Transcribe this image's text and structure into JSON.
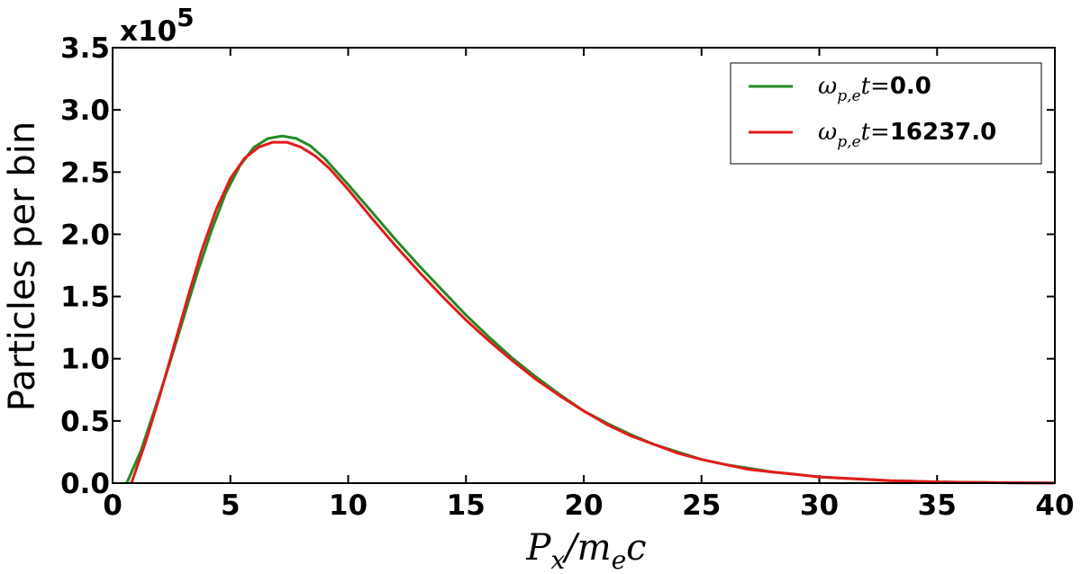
{
  "chart_data": {
    "type": "line",
    "title": "",
    "xlabel": {
      "base": "P",
      "sub1": "x",
      "mid": "/m",
      "sub2": "e",
      "end": "c"
    },
    "ylabel": "Particles per bin",
    "xlim": [
      0,
      40
    ],
    "ylim": [
      0,
      3.5
    ],
    "x_ticks": [
      "0",
      "5",
      "10",
      "15",
      "20",
      "25",
      "30",
      "35",
      "40"
    ],
    "y_ticks": [
      "0.0",
      "0.5",
      "1.0",
      "1.5",
      "2.0",
      "2.5",
      "3.0",
      "3.5"
    ],
    "y_multiplier": {
      "base": "x10",
      "exp": "5"
    },
    "grid": false,
    "legend_position": "top-right",
    "series": [
      {
        "name": {
          "omega": "ω",
          "sub": "p,e",
          "t": "t",
          "eq": "=",
          "value": "0.0"
        },
        "color": "#228b22",
        "x": [
          0.6,
          1.2,
          1.8,
          2.4,
          3.0,
          3.6,
          4.2,
          4.8,
          5.4,
          6.0,
          6.6,
          7.2,
          7.8,
          8.4,
          9.0,
          10.0,
          11.0,
          12.0,
          13.0,
          14.0,
          15.0,
          16.0,
          17.0,
          18.0,
          19.0,
          20.0,
          21.0,
          22.0,
          23.0,
          24.0,
          25.0,
          26.0,
          27.0,
          28.0,
          29.0,
          30.0,
          31.0,
          32.0,
          33.0,
          34.0,
          35.0,
          36.0,
          37.0,
          38.0,
          39.0,
          40.0
        ],
        "y": [
          0.0,
          0.26,
          0.6,
          0.95,
          1.32,
          1.69,
          2.03,
          2.33,
          2.55,
          2.7,
          2.77,
          2.79,
          2.77,
          2.71,
          2.61,
          2.4,
          2.18,
          1.96,
          1.75,
          1.55,
          1.35,
          1.17,
          1.0,
          0.85,
          0.71,
          0.58,
          0.48,
          0.39,
          0.31,
          0.25,
          0.19,
          0.15,
          0.12,
          0.09,
          0.07,
          0.05,
          0.04,
          0.03,
          0.02,
          0.015,
          0.01,
          0.007,
          0.005,
          0.003,
          0.002,
          0.001
        ]
      },
      {
        "name": {
          "omega": "ω",
          "sub": "p,e",
          "t": "t",
          "eq": "=",
          "value": "16237.0"
        },
        "color": "#e31b1b",
        "x": [
          0.8,
          1.4,
          2.0,
          2.6,
          3.2,
          3.8,
          4.4,
          5.0,
          5.6,
          6.2,
          6.8,
          7.4,
          8.0,
          8.6,
          9.2,
          10.0,
          11.0,
          12.0,
          13.0,
          14.0,
          15.0,
          16.0,
          17.0,
          18.0,
          19.0,
          20.0,
          21.0,
          22.0,
          23.0,
          24.0,
          25.0,
          26.0,
          27.0,
          28.0,
          29.0,
          30.0,
          31.0,
          32.0,
          33.0,
          34.0,
          35.0,
          36.0,
          37.0,
          38.0,
          39.0,
          40.0
        ],
        "y": [
          0.0,
          0.33,
          0.7,
          1.1,
          1.5,
          1.88,
          2.2,
          2.45,
          2.61,
          2.7,
          2.74,
          2.74,
          2.7,
          2.63,
          2.53,
          2.36,
          2.13,
          1.91,
          1.7,
          1.5,
          1.31,
          1.14,
          0.98,
          0.83,
          0.7,
          0.58,
          0.47,
          0.38,
          0.31,
          0.24,
          0.19,
          0.15,
          0.11,
          0.09,
          0.07,
          0.05,
          0.04,
          0.03,
          0.02,
          0.015,
          0.01,
          0.007,
          0.005,
          0.003,
          0.002,
          0.001
        ]
      }
    ]
  }
}
